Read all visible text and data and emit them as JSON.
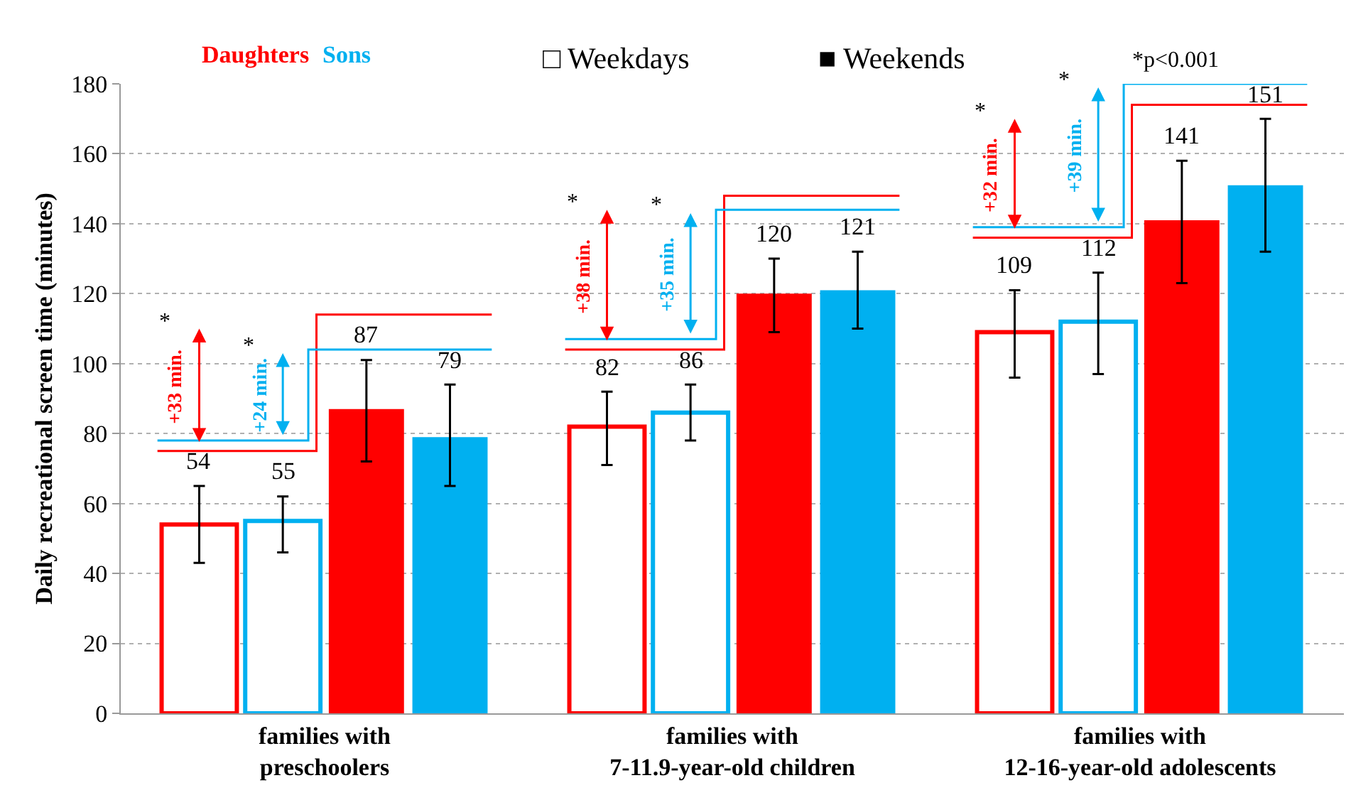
{
  "chart_data": {
    "type": "bar",
    "ylabel": "Daily recreational screen time (minutes)",
    "categories": [
      "families with\npreschoolers",
      "families with\n7-11.9-year-old children",
      "families with\n12-16-year-old adolescents"
    ],
    "series": [
      {
        "color": "#ff0000",
        "values": [
          54,
          82,
          109
        ],
        "errors": [
          [
            43,
            65
          ],
          [
            71,
            92
          ],
          [
            96,
            121
          ]
        ]
      },
      {
        "color": "#00b0f0",
        "values": [
          55,
          86,
          112
        ],
        "errors": [
          [
            46,
            62
          ],
          [
            78,
            94
          ],
          [
            97,
            126
          ]
        ]
      },
      {
        "color": "#ff0000",
        "values": [
          87,
          120,
          141
        ],
        "errors": [
          [
            72,
            101
          ],
          [
            109,
            130
          ],
          [
            123,
            158
          ]
        ]
      },
      {
        "color": "#00b0f0",
        "values": [
          79,
          121,
          151
        ],
        "errors": [
          [
            65,
            94
          ],
          [
            110,
            132
          ],
          [
            132,
            170
          ]
        ]
      }
    ],
    "ylim": [
      0,
      180
    ],
    "yticks": [
      0,
      20,
      40,
      60,
      80,
      100,
      120,
      140,
      160,
      180
    ],
    "grid": "y",
    "data_labels": true,
    "legend": false,
    "annotations": [
      "Daughters",
      "Sons",
      "□ Weekdays",
      "■ Weekends",
      "*p<0.001",
      "+33 min.",
      "+24 min.",
      "+38 min.",
      "+35 min.",
      "+32 min.",
      "+39 min.",
      "*",
      "*",
      "*",
      "*",
      "*",
      "*"
    ]
  }
}
